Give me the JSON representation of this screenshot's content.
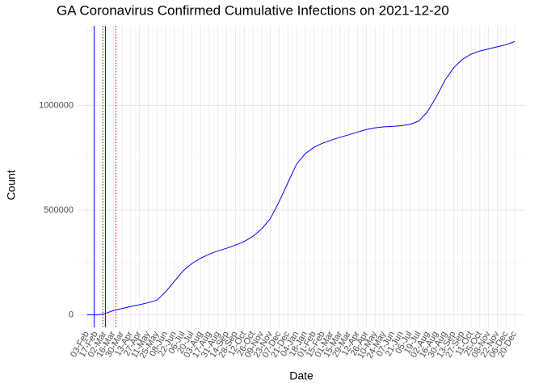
{
  "chart_data": {
    "type": "line",
    "title": "GA Coronavirus Confirmed Cumulative Infections on 2021-12-20",
    "x_label": "Date",
    "y_label": "Count",
    "categories": [
      "03-Feb",
      "17-Feb",
      "02-Mar",
      "16-Mar",
      "30-Mar",
      "13-Apr",
      "27-Apr",
      "11-May",
      "25-May",
      "08-Jun",
      "22-Jun",
      "06-Jul",
      "20-Jul",
      "03-Aug",
      "17-Aug",
      "31-Aug",
      "14-Sep",
      "28-Sep",
      "12-Oct",
      "26-Oct",
      "09-Nov",
      "23-Nov",
      "07-Dec",
      "21-Dec",
      "04-Jan",
      "18-Jan",
      "01-Feb",
      "15-Feb",
      "01-Mar",
      "15-Mar",
      "29-Mar",
      "12-Apr",
      "26-Apr",
      "10-May",
      "24-May",
      "07-Jun",
      "21-Jun",
      "05-Jul",
      "19-Jul",
      "02-Aug",
      "16-Aug",
      "30-Aug",
      "13-Sep",
      "27-Sep",
      "11-Oct",
      "25-Oct",
      "08-Nov",
      "22-Nov",
      "06-Dec",
      "20-Dec"
    ],
    "series": [
      {
        "name": "Count",
        "color": "#0000ff",
        "values": [
          0,
          0,
          5000,
          20000,
          30000,
          40000,
          48000,
          58000,
          70000,
          110000,
          160000,
          210000,
          245000,
          270000,
          290000,
          305000,
          318000,
          333000,
          350000,
          375000,
          410000,
          460000,
          540000,
          630000,
          720000,
          770000,
          800000,
          820000,
          835000,
          848000,
          860000,
          873000,
          885000,
          893000,
          898000,
          900000,
          903000,
          910000,
          925000,
          970000,
          1040000,
          1120000,
          1180000,
          1220000,
          1245000,
          1260000,
          1270000,
          1280000,
          1290000,
          1305000
        ]
      }
    ],
    "xlim": [
      -1,
      50.2
    ],
    "ylim": [
      -60000,
      1380000
    ],
    "yticks": [
      0,
      500000,
      1000000
    ],
    "grid": true,
    "vlines": [
      {
        "at": 0.8,
        "color": "#0000ff",
        "style": "solid"
      },
      {
        "at": 1.8,
        "color": "#8b0000",
        "style": "dotted"
      },
      {
        "at": 2.1,
        "color": "#8b0000",
        "style": "solid"
      },
      {
        "at": 3.3,
        "color": "#ff0000",
        "style": "dotted"
      }
    ]
  }
}
